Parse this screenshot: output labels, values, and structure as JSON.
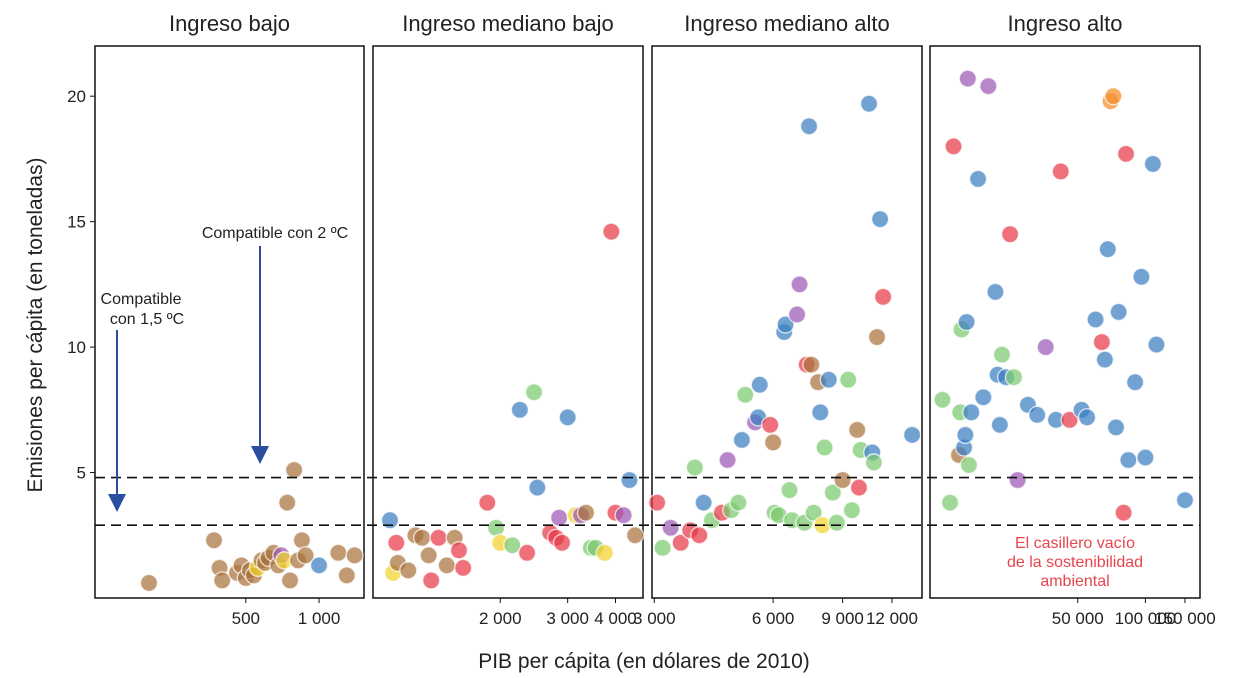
{
  "chart_data": {
    "type": "scatter",
    "panels": [
      {
        "title": "Ingreso bajo",
        "x_ticks": [
          {
            "label": "500",
            "value": 500
          },
          {
            "label": "1 000",
            "value": 1000
          }
        ],
        "points": [
          {
            "x": 200,
            "y": 0.6,
            "color": "#a9713d"
          },
          {
            "x": 370,
            "y": 2.3,
            "color": "#a9713d"
          },
          {
            "x": 390,
            "y": 1.2,
            "color": "#a9713d"
          },
          {
            "x": 400,
            "y": 0.7,
            "color": "#a9713d"
          },
          {
            "x": 460,
            "y": 1.0,
            "color": "#a9713d"
          },
          {
            "x": 480,
            "y": 1.3,
            "color": "#a9713d"
          },
          {
            "x": 500,
            "y": 0.8,
            "color": "#a9713d"
          },
          {
            "x": 520,
            "y": 1.1,
            "color": "#a9713d"
          },
          {
            "x": 540,
            "y": 0.9,
            "color": "#a9713d"
          },
          {
            "x": 560,
            "y": 1.2,
            "color": "#f2d32b"
          },
          {
            "x": 580,
            "y": 1.5,
            "color": "#a9713d"
          },
          {
            "x": 600,
            "y": 1.4,
            "color": "#a9713d"
          },
          {
            "x": 620,
            "y": 1.6,
            "color": "#a9713d"
          },
          {
            "x": 650,
            "y": 1.8,
            "color": "#a9713d"
          },
          {
            "x": 680,
            "y": 1.3,
            "color": "#a9713d"
          },
          {
            "x": 700,
            "y": 1.7,
            "color": "#9b59b6"
          },
          {
            "x": 720,
            "y": 1.5,
            "color": "#f2d32b"
          },
          {
            "x": 740,
            "y": 3.8,
            "color": "#a9713d"
          },
          {
            "x": 760,
            "y": 0.7,
            "color": "#a9713d"
          },
          {
            "x": 790,
            "y": 5.1,
            "color": "#a9713d"
          },
          {
            "x": 820,
            "y": 1.5,
            "color": "#a9713d"
          },
          {
            "x": 850,
            "y": 2.3,
            "color": "#a9713d"
          },
          {
            "x": 880,
            "y": 1.7,
            "color": "#a9713d"
          },
          {
            "x": 1000,
            "y": 1.3,
            "color": "#3b7ec0"
          },
          {
            "x": 1200,
            "y": 1.8,
            "color": "#a9713d"
          },
          {
            "x": 1300,
            "y": 0.9,
            "color": "#a9713d"
          },
          {
            "x": 1400,
            "y": 1.7,
            "color": "#a9713d"
          }
        ]
      },
      {
        "title": "Ingreso mediano bajo",
        "x_ticks": [
          {
            "label": "2 000",
            "value": 2000
          },
          {
            "label": "3 000",
            "value": 3000
          },
          {
            "label": "4 000",
            "value": 4000
          }
        ],
        "points": [
          {
            "x": 1030,
            "y": 3.1,
            "color": "#3b7ec0"
          },
          {
            "x": 1050,
            "y": 1.0,
            "color": "#f2d32b"
          },
          {
            "x": 1070,
            "y": 2.2,
            "color": "#e63946"
          },
          {
            "x": 1080,
            "y": 1.4,
            "color": "#a9713d"
          },
          {
            "x": 1150,
            "y": 1.1,
            "color": "#a9713d"
          },
          {
            "x": 1200,
            "y": 2.5,
            "color": "#a9713d"
          },
          {
            "x": 1250,
            "y": 2.4,
            "color": "#a9713d"
          },
          {
            "x": 1300,
            "y": 1.7,
            "color": "#a9713d"
          },
          {
            "x": 1320,
            "y": 0.7,
            "color": "#e63946"
          },
          {
            "x": 1380,
            "y": 2.4,
            "color": "#e63946"
          },
          {
            "x": 1450,
            "y": 1.3,
            "color": "#a9713d"
          },
          {
            "x": 1520,
            "y": 2.4,
            "color": "#a9713d"
          },
          {
            "x": 1560,
            "y": 1.9,
            "color": "#e63946"
          },
          {
            "x": 1600,
            "y": 1.2,
            "color": "#e63946"
          },
          {
            "x": 1850,
            "y": 3.8,
            "color": "#e63946"
          },
          {
            "x": 1950,
            "y": 2.8,
            "color": "#7bc96f"
          },
          {
            "x": 2000,
            "y": 2.2,
            "color": "#f2d32b"
          },
          {
            "x": 2150,
            "y": 2.1,
            "color": "#7bc96f"
          },
          {
            "x": 2250,
            "y": 7.5,
            "color": "#3b7ec0"
          },
          {
            "x": 2350,
            "y": 1.8,
            "color": "#e63946"
          },
          {
            "x": 2450,
            "y": 8.2,
            "color": "#7bc96f"
          },
          {
            "x": 2500,
            "y": 4.4,
            "color": "#3b7ec0"
          },
          {
            "x": 2700,
            "y": 2.6,
            "color": "#e63946"
          },
          {
            "x": 2800,
            "y": 2.4,
            "color": "#e63946"
          },
          {
            "x": 2850,
            "y": 3.2,
            "color": "#9b59b6"
          },
          {
            "x": 2900,
            "y": 2.2,
            "color": "#e63946"
          },
          {
            "x": 3000,
            "y": 7.2,
            "color": "#3b7ec0"
          },
          {
            "x": 3150,
            "y": 3.3,
            "color": "#f2d32b"
          },
          {
            "x": 3250,
            "y": 3.3,
            "color": "#9b59b6"
          },
          {
            "x": 3350,
            "y": 3.4,
            "color": "#a9713d"
          },
          {
            "x": 3450,
            "y": 2.0,
            "color": "#7bc96f"
          },
          {
            "x": 3550,
            "y": 2.0,
            "color": "#7bc96f"
          },
          {
            "x": 3750,
            "y": 1.8,
            "color": "#f2d32b"
          },
          {
            "x": 3900,
            "y": 14.6,
            "color": "#e63946"
          },
          {
            "x": 4000,
            "y": 3.4,
            "color": "#e63946"
          },
          {
            "x": 4200,
            "y": 3.3,
            "color": "#9b59b6"
          },
          {
            "x": 4350,
            "y": 4.7,
            "color": "#3b7ec0"
          },
          {
            "x": 4500,
            "y": 2.5,
            "color": "#a9713d"
          }
        ]
      },
      {
        "title": "Ingreso mediano alto",
        "x_ticks": [
          {
            "label": "3 000",
            "value": 3000
          },
          {
            "label": "6 000",
            "value": 6000
          },
          {
            "label": "9 000",
            "value": 9000
          },
          {
            "label": "12 000",
            "value": 12000
          }
        ],
        "points": [
          {
            "x": 3050,
            "y": 3.8,
            "color": "#e63946"
          },
          {
            "x": 3150,
            "y": 2.0,
            "color": "#7bc96f"
          },
          {
            "x": 3300,
            "y": 2.8,
            "color": "#9b59b6"
          },
          {
            "x": 3500,
            "y": 2.2,
            "color": "#e63946"
          },
          {
            "x": 3700,
            "y": 2.7,
            "color": "#e63946"
          },
          {
            "x": 3800,
            "y": 5.2,
            "color": "#7bc96f"
          },
          {
            "x": 3900,
            "y": 2.5,
            "color": "#e63946"
          },
          {
            "x": 4000,
            "y": 3.8,
            "color": "#3b7ec0"
          },
          {
            "x": 4200,
            "y": 3.1,
            "color": "#7bc96f"
          },
          {
            "x": 4450,
            "y": 3.4,
            "color": "#e63946"
          },
          {
            "x": 4600,
            "y": 5.5,
            "color": "#9b59b6"
          },
          {
            "x": 4700,
            "y": 3.5,
            "color": "#7bc96f"
          },
          {
            "x": 4900,
            "y": 3.8,
            "color": "#7bc96f"
          },
          {
            "x": 5000,
            "y": 6.3,
            "color": "#3b7ec0"
          },
          {
            "x": 5100,
            "y": 8.1,
            "color": "#7bc96f"
          },
          {
            "x": 5400,
            "y": 7.0,
            "color": "#9b59b6"
          },
          {
            "x": 5500,
            "y": 7.2,
            "color": "#3b7ec0"
          },
          {
            "x": 5550,
            "y": 8.5,
            "color": "#3b7ec0"
          },
          {
            "x": 5900,
            "y": 6.9,
            "color": "#e63946"
          },
          {
            "x": 6000,
            "y": 6.2,
            "color": "#a9713d"
          },
          {
            "x": 6050,
            "y": 3.4,
            "color": "#7bc96f"
          },
          {
            "x": 6200,
            "y": 3.3,
            "color": "#7bc96f"
          },
          {
            "x": 6400,
            "y": 10.6,
            "color": "#3b7ec0"
          },
          {
            "x": 6450,
            "y": 10.9,
            "color": "#3b7ec0"
          },
          {
            "x": 6600,
            "y": 4.3,
            "color": "#7bc96f"
          },
          {
            "x": 6700,
            "y": 3.1,
            "color": "#7bc96f"
          },
          {
            "x": 6900,
            "y": 11.3,
            "color": "#9b59b6"
          },
          {
            "x": 7000,
            "y": 12.5,
            "color": "#9b59b6"
          },
          {
            "x": 7200,
            "y": 3.0,
            "color": "#7bc96f"
          },
          {
            "x": 7300,
            "y": 9.3,
            "color": "#e63946"
          },
          {
            "x": 7400,
            "y": 18.8,
            "color": "#3b7ec0"
          },
          {
            "x": 7500,
            "y": 9.3,
            "color": "#a9713d"
          },
          {
            "x": 7600,
            "y": 3.4,
            "color": "#7bc96f"
          },
          {
            "x": 7800,
            "y": 8.6,
            "color": "#a9713d"
          },
          {
            "x": 7900,
            "y": 7.4,
            "color": "#3b7ec0"
          },
          {
            "x": 8000,
            "y": 2.9,
            "color": "#f2d32b"
          },
          {
            "x": 8100,
            "y": 6.0,
            "color": "#7bc96f"
          },
          {
            "x": 8300,
            "y": 8.7,
            "color": "#3b7ec0"
          },
          {
            "x": 8500,
            "y": 4.2,
            "color": "#7bc96f"
          },
          {
            "x": 8700,
            "y": 3.0,
            "color": "#7bc96f"
          },
          {
            "x": 9000,
            "y": 4.7,
            "color": "#a9713d"
          },
          {
            "x": 9300,
            "y": 8.7,
            "color": "#7bc96f"
          },
          {
            "x": 9500,
            "y": 3.5,
            "color": "#7bc96f"
          },
          {
            "x": 9800,
            "y": 6.7,
            "color": "#a9713d"
          },
          {
            "x": 9900,
            "y": 4.4,
            "color": "#e63946"
          },
          {
            "x": 10000,
            "y": 5.9,
            "color": "#7bc96f"
          },
          {
            "x": 10500,
            "y": 19.7,
            "color": "#3b7ec0"
          },
          {
            "x": 10700,
            "y": 5.8,
            "color": "#3b7ec0"
          },
          {
            "x": 10800,
            "y": 5.4,
            "color": "#7bc96f"
          },
          {
            "x": 11000,
            "y": 10.4,
            "color": "#a9713d"
          },
          {
            "x": 11200,
            "y": 15.1,
            "color": "#3b7ec0"
          },
          {
            "x": 11400,
            "y": 12.0,
            "color": "#e63946"
          },
          {
            "x": 13500,
            "y": 6.5,
            "color": "#3b7ec0"
          }
        ]
      },
      {
        "title": "Ingreso alto",
        "x_ticks": [
          {
            "label": "50 000",
            "value": 50000
          },
          {
            "label": "100 000",
            "value": 100000
          },
          {
            "label": "150 000",
            "value": 150000
          }
        ],
        "points": [
          {
            "x": 12500,
            "y": 7.9,
            "color": "#7bc96f"
          },
          {
            "x": 13500,
            "y": 3.8,
            "color": "#7bc96f"
          },
          {
            "x": 14000,
            "y": 18.0,
            "color": "#e63946"
          },
          {
            "x": 14800,
            "y": 5.7,
            "color": "#a9713d"
          },
          {
            "x": 15000,
            "y": 7.4,
            "color": "#7bc96f"
          },
          {
            "x": 15200,
            "y": 10.7,
            "color": "#7bc96f"
          },
          {
            "x": 15600,
            "y": 6.0,
            "color": "#3b7ec0"
          },
          {
            "x": 15800,
            "y": 6.5,
            "color": "#3b7ec0"
          },
          {
            "x": 16000,
            "y": 11.0,
            "color": "#3b7ec0"
          },
          {
            "x": 16200,
            "y": 20.7,
            "color": "#9b59b6"
          },
          {
            "x": 16400,
            "y": 5.3,
            "color": "#7bc96f"
          },
          {
            "x": 16800,
            "y": 7.4,
            "color": "#3b7ec0"
          },
          {
            "x": 18000,
            "y": 16.7,
            "color": "#3b7ec0"
          },
          {
            "x": 19000,
            "y": 8.0,
            "color": "#3b7ec0"
          },
          {
            "x": 20000,
            "y": 20.4,
            "color": "#9b59b6"
          },
          {
            "x": 21500,
            "y": 12.2,
            "color": "#3b7ec0"
          },
          {
            "x": 22000,
            "y": 8.9,
            "color": "#3b7ec0"
          },
          {
            "x": 22500,
            "y": 6.9,
            "color": "#3b7ec0"
          },
          {
            "x": 23000,
            "y": 9.7,
            "color": "#7bc96f"
          },
          {
            "x": 24000,
            "y": 8.8,
            "color": "#3b7ec0"
          },
          {
            "x": 25000,
            "y": 14.5,
            "color": "#e63946"
          },
          {
            "x": 26000,
            "y": 8.8,
            "color": "#7bc96f"
          },
          {
            "x": 27000,
            "y": 4.7,
            "color": "#9b59b6"
          },
          {
            "x": 30000,
            "y": 7.7,
            "color": "#3b7ec0"
          },
          {
            "x": 33000,
            "y": 7.3,
            "color": "#3b7ec0"
          },
          {
            "x": 36000,
            "y": 10.0,
            "color": "#9b59b6"
          },
          {
            "x": 40000,
            "y": 7.1,
            "color": "#3b7ec0"
          },
          {
            "x": 42000,
            "y": 17.0,
            "color": "#e63946"
          },
          {
            "x": 46000,
            "y": 7.1,
            "color": "#e63946"
          },
          {
            "x": 52000,
            "y": 7.5,
            "color": "#3b7ec0"
          },
          {
            "x": 55000,
            "y": 7.2,
            "color": "#3b7ec0"
          },
          {
            "x": 60000,
            "y": 11.1,
            "color": "#3b7ec0"
          },
          {
            "x": 64000,
            "y": 10.2,
            "color": "#e63946"
          },
          {
            "x": 66000,
            "y": 9.5,
            "color": "#3b7ec0"
          },
          {
            "x": 68000,
            "y": 13.9,
            "color": "#3b7ec0"
          },
          {
            "x": 70000,
            "y": 19.8,
            "color": "#f28e2b"
          },
          {
            "x": 72000,
            "y": 20.0,
            "color": "#f28e2b"
          },
          {
            "x": 74000,
            "y": 6.8,
            "color": "#3b7ec0"
          },
          {
            "x": 76000,
            "y": 11.4,
            "color": "#3b7ec0"
          },
          {
            "x": 80000,
            "y": 3.4,
            "color": "#e63946"
          },
          {
            "x": 82000,
            "y": 17.7,
            "color": "#e63946"
          },
          {
            "x": 84000,
            "y": 5.5,
            "color": "#3b7ec0"
          },
          {
            "x": 90000,
            "y": 8.6,
            "color": "#3b7ec0"
          },
          {
            "x": 96000,
            "y": 12.8,
            "color": "#3b7ec0"
          },
          {
            "x": 100000,
            "y": 5.6,
            "color": "#3b7ec0"
          },
          {
            "x": 108000,
            "y": 17.3,
            "color": "#3b7ec0"
          },
          {
            "x": 112000,
            "y": 10.1,
            "color": "#3b7ec0"
          },
          {
            "x": 150000,
            "y": 3.9,
            "color": "#3b7ec0"
          }
        ]
      }
    ],
    "y_ticks": [
      5,
      10,
      15,
      20
    ],
    "ylim": [
      0,
      22
    ],
    "hlines": [
      4.8,
      2.9
    ],
    "xlabel": "PIB per cápita  (en dólares de 2010)",
    "ylabel": "Emisiones per cápita (en toneladas)",
    "annotations": {
      "compat15_line1": "Compatible",
      "compat15_line2": "con 1,5 ºC",
      "compat2": "Compatible con 2 ºC",
      "empty_box_line1": "El casillero vacío",
      "empty_box_line2": "de la sostenibilidad",
      "empty_box_line3": "ambiental"
    },
    "colors": {
      "arrow": "#2a4ea0",
      "annotation_red": "#e8454d"
    }
  }
}
